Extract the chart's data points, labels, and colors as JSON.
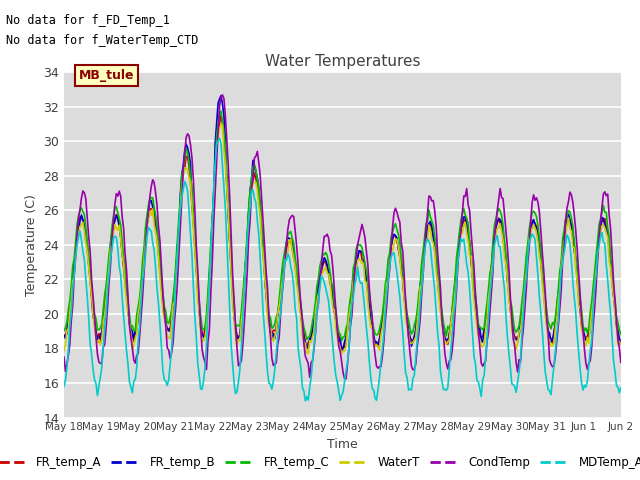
{
  "title": "Water Temperatures",
  "xlabel": "Time",
  "ylabel": "Temperature (C)",
  "ylim": [
    14,
    34
  ],
  "yticks": [
    14,
    16,
    18,
    20,
    22,
    24,
    26,
    28,
    30,
    32,
    34
  ],
  "bg_color": "#dcdcdc",
  "text_color": "#404040",
  "annotation_lines": [
    "No data for f_FD_Temp_1",
    "No data for f_WaterTemp_CTD"
  ],
  "mb_tule_label": "MB_tule",
  "x_labels": [
    "May 18",
    "May 19",
    "May 20",
    "May 21",
    "May 22",
    "May 23",
    "May 24",
    "May 25",
    "May 26",
    "May 27",
    "May 28",
    "May 29",
    "May 30",
    "May 31",
    "Jun 1",
    "Jun 2"
  ],
  "series": {
    "FR_temp_A": {
      "color": "#cc0000",
      "lw": 1.2
    },
    "FR_temp_B": {
      "color": "#0000cc",
      "lw": 1.2
    },
    "FR_temp_C": {
      "color": "#00bb00",
      "lw": 1.2
    },
    "WaterT": {
      "color": "#cccc00",
      "lw": 1.2
    },
    "CondTemp": {
      "color": "#9900aa",
      "lw": 1.2
    },
    "MDTemp_A": {
      "color": "#00cccc",
      "lw": 1.2
    }
  },
  "font_size": 9
}
